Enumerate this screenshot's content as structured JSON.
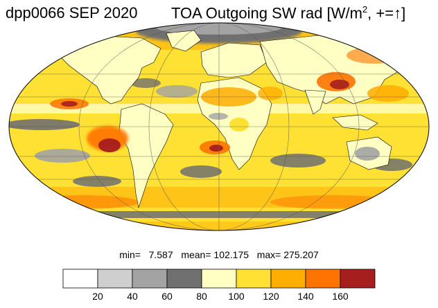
{
  "header": {
    "left_title": "dpp0066 SEP 2020",
    "right_title_main": "TOA Outgoing SW rad [W/m",
    "right_title_sup": "2",
    "right_title_tail": ", +=",
    "right_title_arrow": "↑",
    "right_title_end": "]"
  },
  "stats": {
    "min_label": "min=",
    "min_value": "7.587",
    "mean_label": "mean=",
    "mean_value": "102.175",
    "max_label": "max=",
    "max_value": "275.207"
  },
  "colorbar": {
    "colors": [
      "#ffffff",
      "#cfcfcf",
      "#a3a3a3",
      "#707070",
      "#ffffc4",
      "#ffe133",
      "#ffad00",
      "#ff7300",
      "#a61e1e"
    ],
    "tick_labels": [
      "20",
      "40",
      "60",
      "80",
      "100",
      "120",
      "140",
      "160"
    ],
    "unit": "W/m2"
  },
  "map": {
    "projection": "mollweide",
    "ocean_color": "#ffe133",
    "land_outline_color": "#000000",
    "gridlines": true
  }
}
